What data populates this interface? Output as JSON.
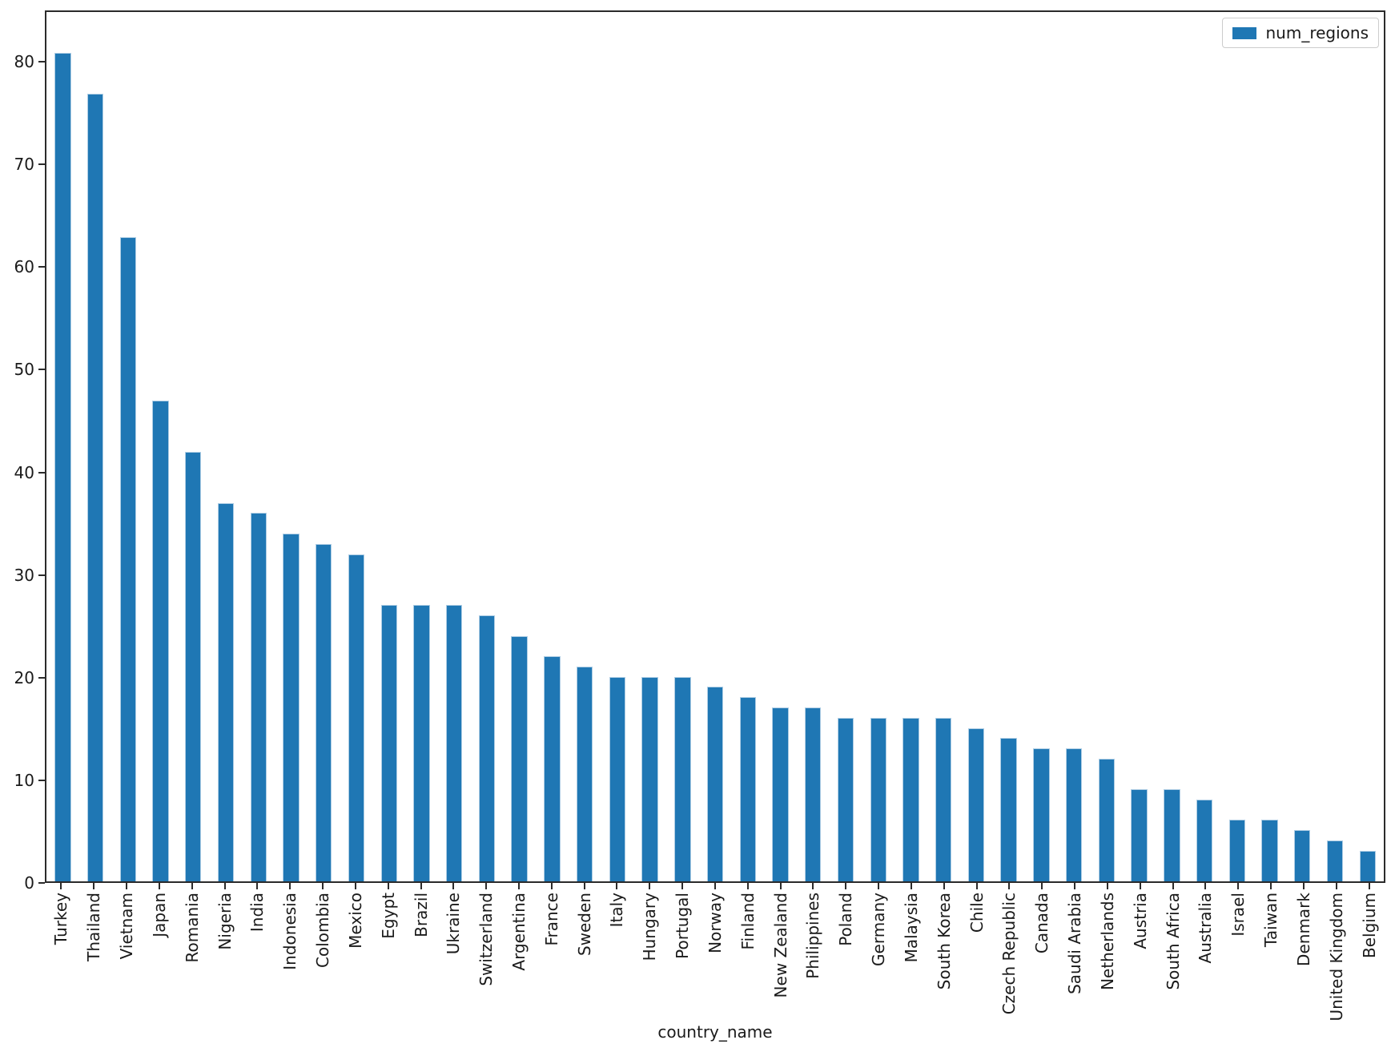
{
  "chart_data": {
    "type": "bar",
    "title": "",
    "xlabel": "country_name",
    "ylabel": "",
    "legend": {
      "label": "num_regions",
      "position": "upper right"
    },
    "grid": false,
    "bar_color": "#1f77b4",
    "ylim": [
      0,
      85
    ],
    "yticks": [
      0,
      10,
      20,
      30,
      40,
      50,
      60,
      70,
      80
    ],
    "x_tick_rotation": 90,
    "categories": [
      "Turkey",
      "Thailand",
      "Vietnam",
      "Japan",
      "Romania",
      "Nigeria",
      "India",
      "Indonesia",
      "Colombia",
      "Mexico",
      "Egypt",
      "Brazil",
      "Ukraine",
      "Switzerland",
      "Argentina",
      "France",
      "Sweden",
      "Italy",
      "Hungary",
      "Portugal",
      "Norway",
      "Finland",
      "New Zealand",
      "Philippines",
      "Poland",
      "Germany",
      "Malaysia",
      "South Korea",
      "Chile",
      "Czech Republic",
      "Canada",
      "Saudi Arabia",
      "Netherlands",
      "Austria",
      "South Africa",
      "Australia",
      "Israel",
      "Taiwan",
      "Denmark",
      "United Kingdom",
      "Belgium"
    ],
    "series": [
      {
        "name": "num_regions",
        "values": [
          81,
          77,
          63,
          47,
          42,
          37,
          36,
          34,
          33,
          32,
          27,
          27,
          27,
          26,
          24,
          22,
          21,
          20,
          20,
          20,
          19,
          18,
          17,
          17,
          16,
          16,
          16,
          16,
          15,
          14,
          13,
          13,
          12,
          9,
          9,
          8,
          6,
          6,
          5,
          4,
          3
        ]
      }
    ]
  }
}
